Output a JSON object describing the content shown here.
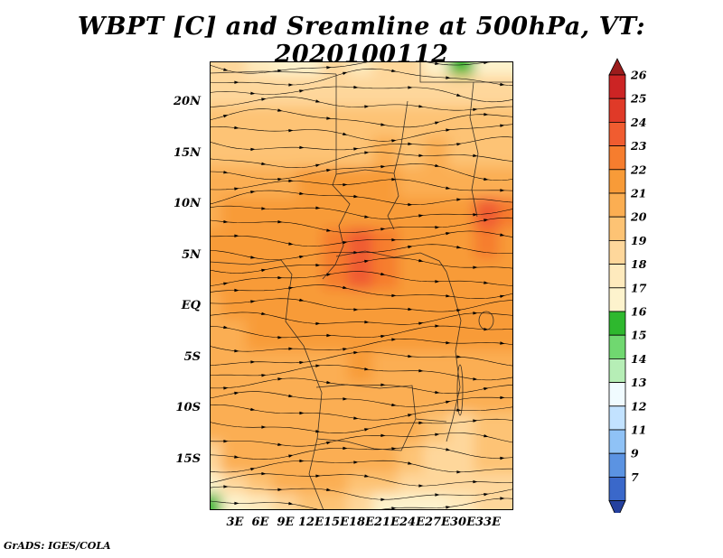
{
  "title": "WBPT [C] and Sreamline at 500hPa, VT: 2020100112",
  "footer": "GrADS: IGES/COLA",
  "chart_data": {
    "type": "heatmap",
    "title": "WBPT [C] and Sreamline at 500hPa, VT: 2020100112",
    "variable": "WBPT",
    "units": "C",
    "pressure_level": "500hPa",
    "valid_time": "2020100112",
    "overlay": "streamlines-with-arrows",
    "x_ticks": [
      "3E",
      "6E",
      "9E",
      "12E",
      "15E",
      "18E",
      "21E",
      "24E",
      "27E",
      "30E",
      "33E"
    ],
    "y_ticks": [
      "20N",
      "15N",
      "10N",
      "5N",
      "EQ",
      "5S",
      "10S",
      "15S"
    ],
    "lon_range": [
      0,
      36
    ],
    "lat_range": [
      -20,
      24
    ],
    "colorbar": {
      "levels": [
        26,
        25,
        24,
        23,
        22,
        21,
        20,
        19,
        18,
        17,
        16,
        15,
        14,
        13,
        12,
        11,
        9,
        7
      ],
      "segment_colors": [
        "#cc2424",
        "#e03a28",
        "#f05c30",
        "#f67d2e",
        "#f89b38",
        "#fbae52",
        "#fdc374",
        "#fed79b",
        "#feeabd",
        "#fdf3cd",
        "#2eb82e",
        "#70d870",
        "#b6eeb6",
        "#f0fbff",
        "#c2e2ff",
        "#8fc2f6",
        "#5b93e2",
        "#3a68ca"
      ],
      "above_color": "#9b1c1c",
      "below_color": "#24409e"
    },
    "grid_lons": [
      0,
      3,
      6,
      9,
      12,
      15,
      18,
      21,
      24,
      27,
      30,
      33,
      36
    ],
    "grid_lats": [
      24,
      21,
      18,
      15,
      12,
      9,
      6,
      3,
      0,
      -3,
      -6,
      -9,
      -12,
      -15,
      -18,
      -20
    ],
    "values": [
      [
        18.5,
        18.5,
        17.5,
        16.2,
        16.8,
        18.2,
        17.0,
        18.4,
        18.4,
        16.0,
        15.6,
        16.0,
        16.4
      ],
      [
        18.8,
        18.6,
        18.3,
        18.0,
        18.3,
        18.5,
        18.4,
        18.6,
        18.8,
        18.4,
        18.0,
        18.2,
        18.4
      ],
      [
        19.0,
        19.2,
        19.0,
        19.3,
        19.1,
        19.2,
        19.4,
        19.5,
        19.4,
        19.5,
        19.2,
        19.3,
        19.3
      ],
      [
        19.4,
        19.6,
        19.5,
        19.8,
        19.6,
        19.7,
        19.9,
        20.0,
        19.9,
        20.0,
        19.8,
        19.8,
        19.8
      ],
      [
        20.1,
        20.4,
        20.6,
        20.9,
        21.0,
        21.0,
        21.0,
        21.0,
        20.9,
        20.7,
        20.6,
        20.6,
        20.6
      ],
      [
        20.6,
        21.0,
        21.3,
        21.4,
        21.4,
        21.5,
        21.8,
        21.6,
        21.4,
        21.4,
        21.5,
        23.0,
        22.2
      ],
      [
        21.0,
        21.4,
        21.5,
        21.5,
        21.6,
        22.4,
        23.8,
        22.6,
        21.7,
        21.5,
        21.6,
        22.0,
        21.9
      ],
      [
        21.0,
        21.3,
        21.4,
        21.4,
        21.5,
        22.0,
        23.0,
        22.2,
        21.6,
        21.5,
        21.5,
        21.6,
        21.6
      ],
      [
        20.8,
        21.0,
        21.1,
        21.1,
        21.2,
        21.5,
        21.9,
        21.6,
        21.5,
        21.4,
        21.5,
        21.6,
        21.5
      ],
      [
        20.6,
        20.8,
        21.0,
        21.0,
        21.0,
        21.1,
        21.4,
        21.1,
        21.0,
        21.0,
        21.0,
        21.1,
        21.0
      ],
      [
        20.5,
        20.6,
        20.7,
        20.7,
        20.7,
        20.9,
        21.0,
        20.9,
        20.6,
        20.5,
        20.5,
        20.6,
        20.6
      ],
      [
        20.4,
        20.5,
        20.6,
        20.6,
        20.6,
        20.6,
        20.7,
        20.6,
        20.5,
        20.3,
        20.1,
        20.2,
        20.4
      ],
      [
        20.0,
        20.4,
        20.5,
        20.5,
        20.5,
        20.5,
        20.5,
        20.4,
        20.0,
        19.4,
        18.9,
        19.4,
        19.9
      ],
      [
        18.9,
        20.0,
        20.4,
        20.5,
        20.5,
        20.5,
        20.4,
        20.0,
        19.4,
        18.9,
        18.5,
        19.0,
        19.5
      ],
      [
        16.4,
        18.0,
        19.8,
        20.0,
        20.3,
        20.3,
        19.9,
        19.4,
        18.9,
        18.4,
        18.4,
        18.5,
        18.9
      ],
      [
        15.8,
        16.4,
        17.8,
        18.9,
        19.4,
        19.4,
        18.9,
        16.9,
        16.4,
        16.4,
        17.9,
        18.0,
        18.4
      ]
    ]
  }
}
